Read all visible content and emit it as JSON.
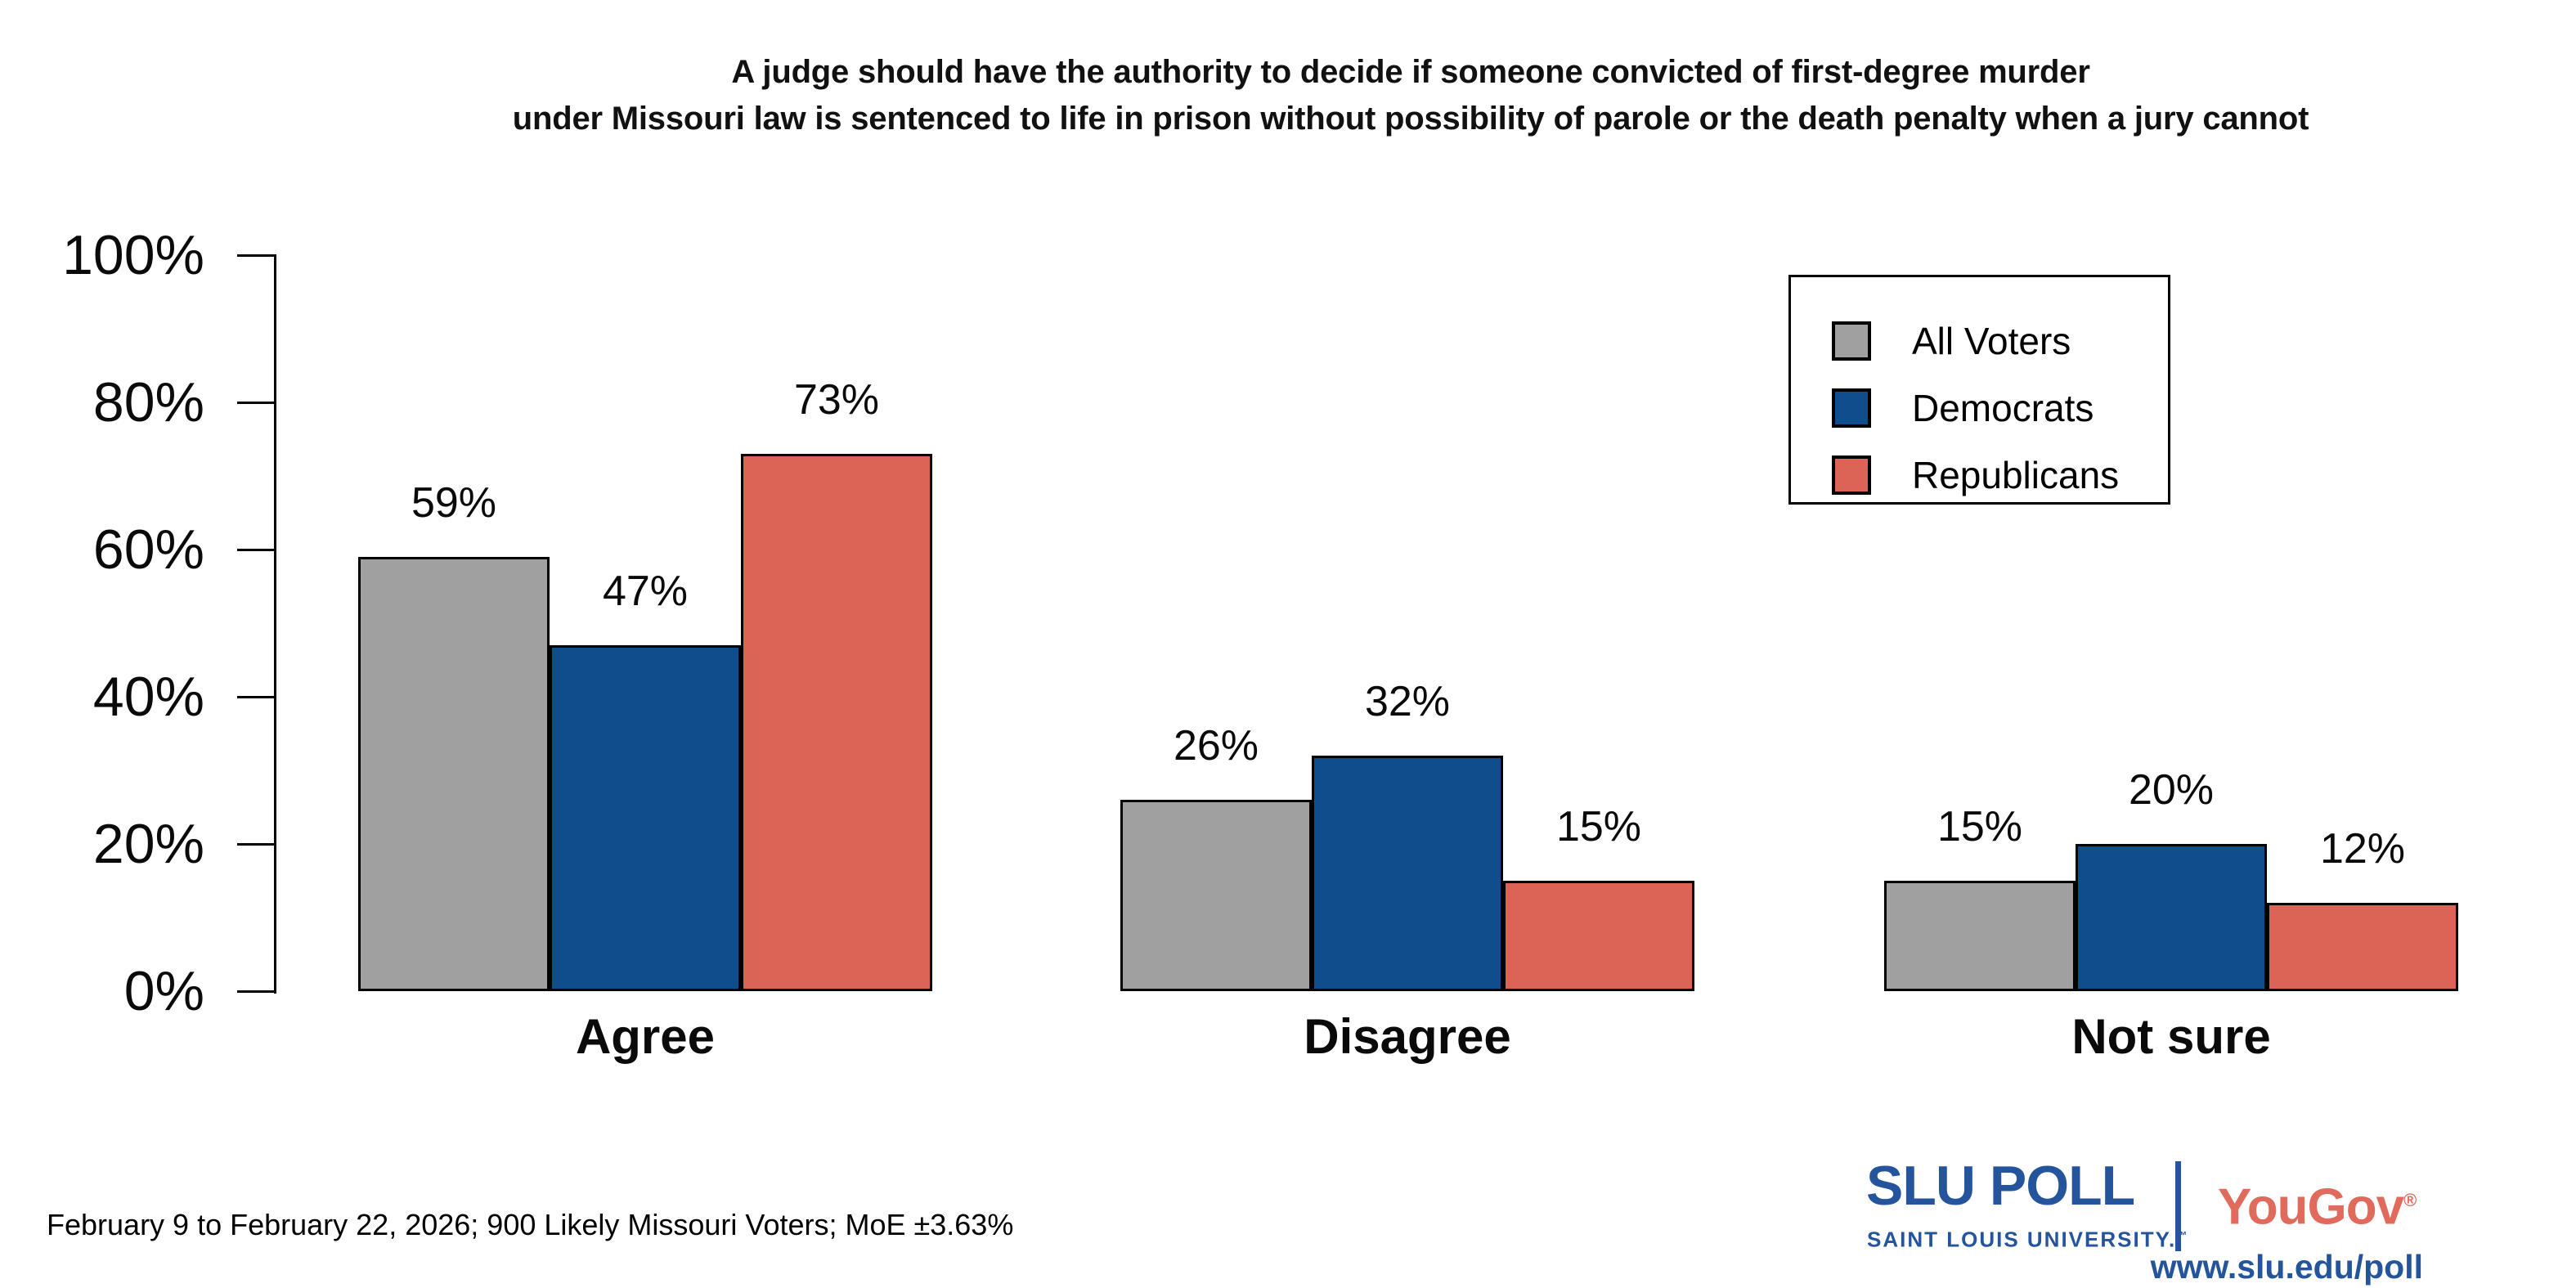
{
  "title": {
    "line1": "A judge should have the authority to decide if someone convicted of first-degree murder",
    "line2": "under Missouri law is sentenced to life in prison without possibility of parole or the death penalty when a jury cannot"
  },
  "chart_data": {
    "type": "bar",
    "categories": [
      "Agree",
      "Disagree",
      "Not sure"
    ],
    "series": [
      {
        "name": "All Voters",
        "color": "#A0A0A0",
        "values": [
          59,
          26,
          15
        ]
      },
      {
        "name": "Democrats",
        "color": "#104D8D",
        "values": [
          47,
          32,
          20
        ]
      },
      {
        "name": "Republicans",
        "color": "#DB6456",
        "values": [
          73,
          15,
          12
        ]
      }
    ],
    "value_suffix": "%",
    "ylim": [
      0,
      100
    ],
    "ytick_values": [
      0,
      20,
      40,
      60,
      80,
      100
    ],
    "xlabel": "",
    "ylabel": "",
    "grid": false,
    "legend_position": "top-right",
    "bar_labels_shown": true
  },
  "footer": {
    "note": "February 9 to February 22, 2026; 900 Likely Missouri Voters; MoE ±3.63%"
  },
  "branding": {
    "slu_wordmark": "SLU POLL",
    "slu_subtext": "SAINT LOUIS UNIVERSITY.",
    "slu_tm": "™",
    "partner": "YouGov",
    "partner_reg": "®",
    "url": "www.slu.edu/poll",
    "slu_blue": "#24549B",
    "yougov_red": "#E06A5B"
  }
}
